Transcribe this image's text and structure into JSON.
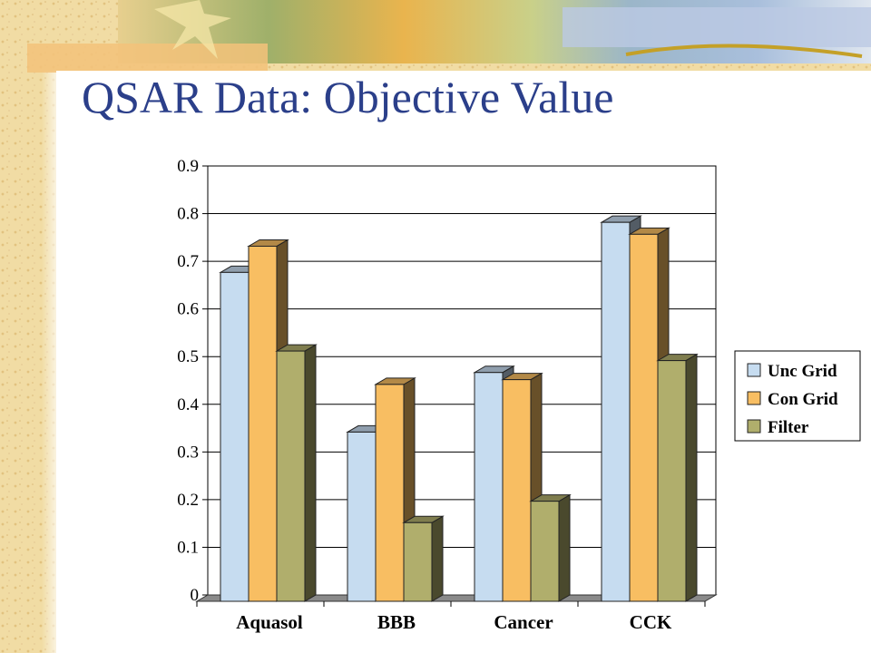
{
  "slide": {
    "title": "QSAR Data: Objective Value"
  },
  "chart_data": {
    "type": "bar",
    "categories": [
      "Aquasol",
      "BBB",
      "Cancer",
      "CCK"
    ],
    "series": [
      {
        "name": "Unc Grid",
        "values": [
          0.69,
          0.355,
          0.48,
          0.795
        ]
      },
      {
        "name": "Con Grid",
        "values": [
          0.745,
          0.455,
          0.465,
          0.77
        ]
      },
      {
        "name": "Filter",
        "values": [
          0.525,
          0.165,
          0.21,
          0.505
        ]
      }
    ],
    "title": "",
    "xlabel": "",
    "ylabel": "",
    "ylim": [
      0,
      0.9
    ],
    "yticks": [
      "0",
      "0.1",
      "0.2",
      "0.3",
      "0.4",
      "0.5",
      "0.6",
      "0.7",
      "0.8",
      "0.9"
    ],
    "grid": true,
    "legend": "right",
    "bar_style": "3d",
    "colors": {
      "Unc Grid": "#c6dcf0",
      "Con Grid": "#f8be62",
      "Filter": "#b0ae6c"
    }
  }
}
